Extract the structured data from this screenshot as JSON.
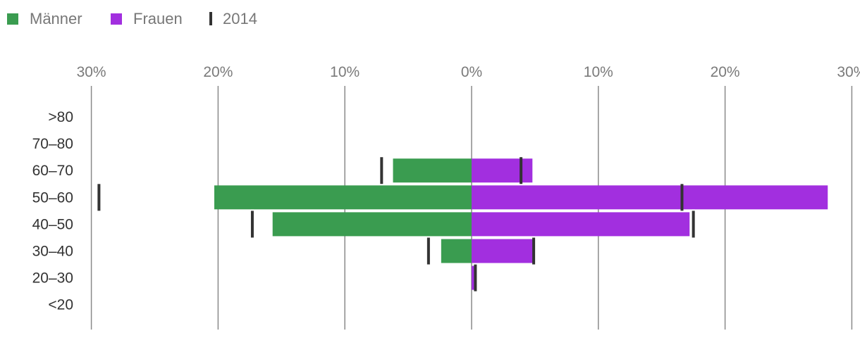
{
  "chart_data": {
    "type": "bar",
    "orientation": "horizontal",
    "layout": "population-pyramid",
    "x_ticks": [
      "30%",
      "20%",
      "10%",
      "0%",
      "10%",
      "20%",
      "30%"
    ],
    "xlim": [
      -30,
      30
    ],
    "grid": true,
    "legend_position": "top-left",
    "categories": [
      ">80",
      "70–80",
      "60–70",
      "50–60",
      "40–50",
      "30–40",
      "20–30",
      "<20"
    ],
    "series": [
      {
        "name": "Männer",
        "color": "#3a9c50",
        "side": "left",
        "values": [
          0,
          0,
          6.2,
          20.3,
          15.7,
          2.4,
          0,
          0
        ]
      },
      {
        "name": "Frauen",
        "color": "#a22fdf",
        "side": "right",
        "values": [
          0,
          0,
          4.8,
          28.1,
          17.2,
          5.0,
          0.3,
          0
        ]
      }
    ],
    "markers": {
      "name": "2014",
      "color": "#333333",
      "men": [
        null,
        null,
        7.1,
        29.4,
        17.3,
        3.4,
        null,
        null
      ],
      "women": [
        null,
        null,
        3.9,
        16.6,
        17.5,
        4.9,
        0.3,
        null
      ]
    }
  }
}
